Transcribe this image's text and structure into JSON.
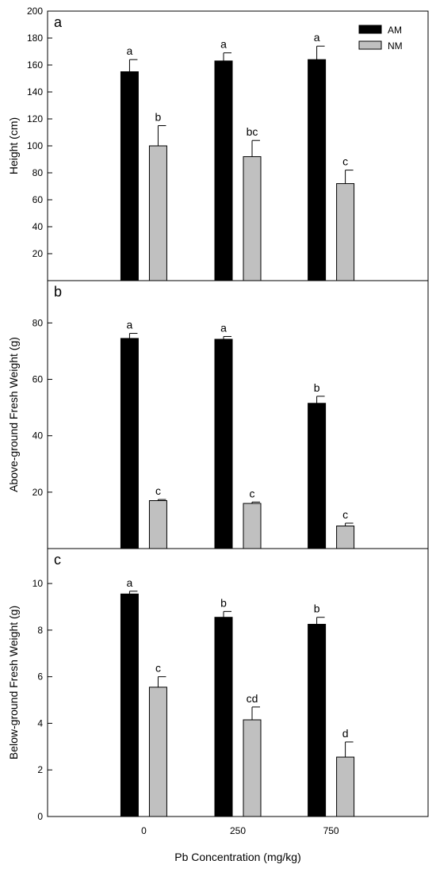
{
  "chart_data": [
    {
      "type": "bar",
      "panel_label": "a",
      "categories": [
        "0",
        "250",
        "750"
      ],
      "ylabel": "Height (cm)",
      "ylim": [
        0,
        200
      ],
      "yticks": [
        20,
        40,
        60,
        80,
        100,
        120,
        140,
        160,
        180,
        200
      ],
      "series": [
        {
          "name": "AM",
          "color": "#000000",
          "values": [
            155,
            163,
            164
          ],
          "errors": [
            9,
            6,
            10
          ],
          "letters": [
            "a",
            "a",
            "a"
          ]
        },
        {
          "name": "NM",
          "color": "#c0c0c0",
          "values": [
            100,
            92,
            72
          ],
          "errors": [
            15,
            12,
            10
          ],
          "letters": [
            "b",
            "bc",
            "c"
          ]
        }
      ],
      "legend_position": "top-right"
    },
    {
      "type": "bar",
      "panel_label": "b",
      "categories": [
        "0",
        "250",
        "750"
      ],
      "ylabel": "Above-ground Fresh Weight (g)",
      "ylim": [
        0,
        95
      ],
      "yticks": [
        20,
        40,
        60,
        80
      ],
      "series": [
        {
          "name": "AM",
          "color": "#000000",
          "values": [
            74.5,
            74.2,
            51.5
          ],
          "errors": [
            1.8,
            1.0,
            2.5
          ],
          "letters": [
            "a",
            "a",
            "b"
          ]
        },
        {
          "name": "NM",
          "color": "#c0c0c0",
          "values": [
            17,
            16,
            8
          ],
          "errors": [
            0.4,
            0.5,
            1.0
          ],
          "letters": [
            "c",
            "c",
            "c"
          ]
        }
      ]
    },
    {
      "type": "bar",
      "panel_label": "c",
      "categories": [
        "0",
        "250",
        "750"
      ],
      "xlabel": "Pb Concentration (mg/kg)",
      "ylabel": "Below-ground Fresh Weight (g)",
      "ylim": [
        0,
        11.5
      ],
      "yticks": [
        0,
        2,
        4,
        6,
        8,
        10
      ],
      "series": [
        {
          "name": "AM",
          "color": "#000000",
          "values": [
            9.55,
            8.55,
            8.25
          ],
          "errors": [
            0.12,
            0.25,
            0.3
          ],
          "letters": [
            "a",
            "b",
            "b"
          ]
        },
        {
          "name": "NM",
          "color": "#c0c0c0",
          "values": [
            5.55,
            4.15,
            2.55
          ],
          "errors": [
            0.45,
            0.55,
            0.65
          ],
          "letters": [
            "c",
            "cd",
            "d"
          ]
        }
      ]
    }
  ]
}
